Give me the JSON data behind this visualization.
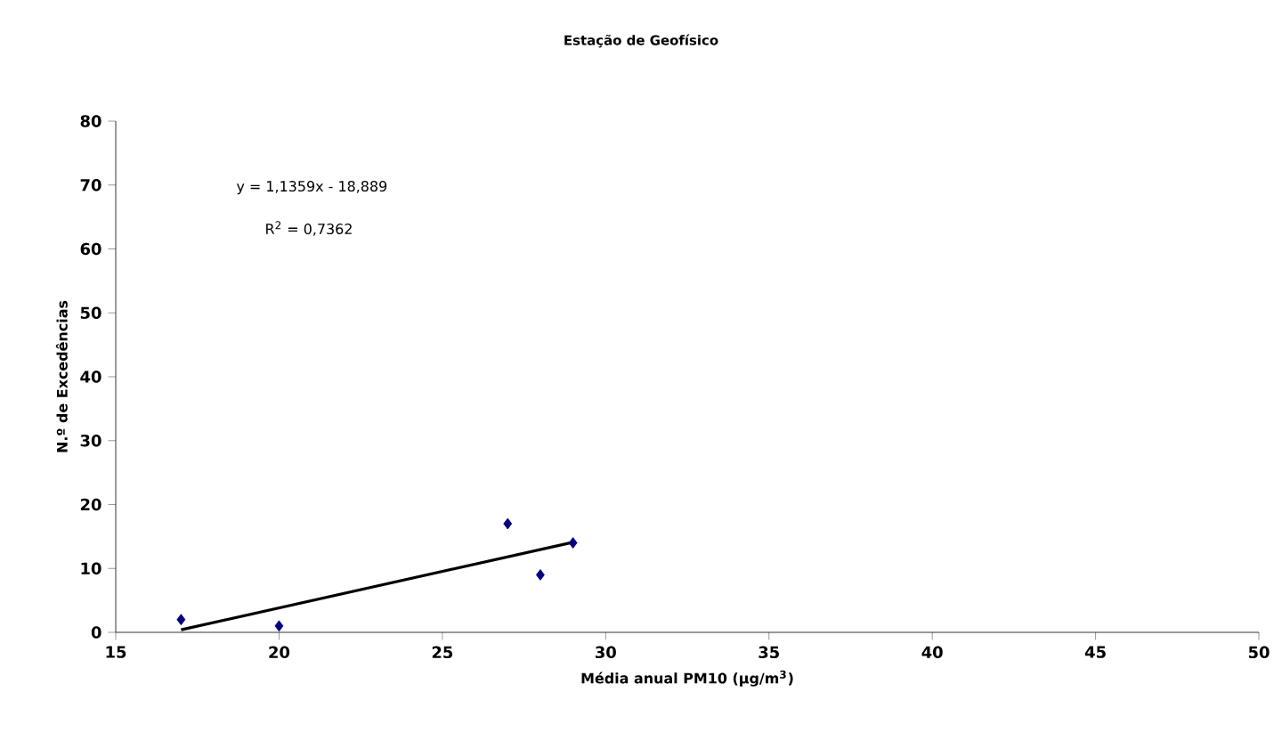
{
  "chart_data": {
    "type": "scatter",
    "title": "Estação de Geofísico",
    "xlabel": "Média anual PM10 (µg/m$^{3}$)",
    "ylabel": "N.º de Excedências",
    "annotations": [
      "y = 1,1359x - 18,889",
      "R$^{2}$ = 0,7362"
    ],
    "xlim": [
      15,
      50
    ],
    "xticks": [
      15,
      20,
      25,
      30,
      35,
      40,
      45,
      50
    ],
    "ylim": [
      0,
      80
    ],
    "yticks": [
      0,
      10,
      20,
      30,
      40,
      50,
      60,
      70,
      80
    ],
    "grid": false,
    "marker": "diamond",
    "series": [
      {
        "color": "#000080",
        "x": [
          17,
          20,
          27,
          28,
          29
        ],
        "values": [
          2,
          1,
          17,
          9,
          14
        ]
      },
      {
        "type": "line",
        "color": "#000000",
        "x": [
          17,
          29
        ],
        "values": [
          0.4,
          14.1
        ],
        "line_style": "solid",
        "marker": "none"
      }
    ]
  }
}
